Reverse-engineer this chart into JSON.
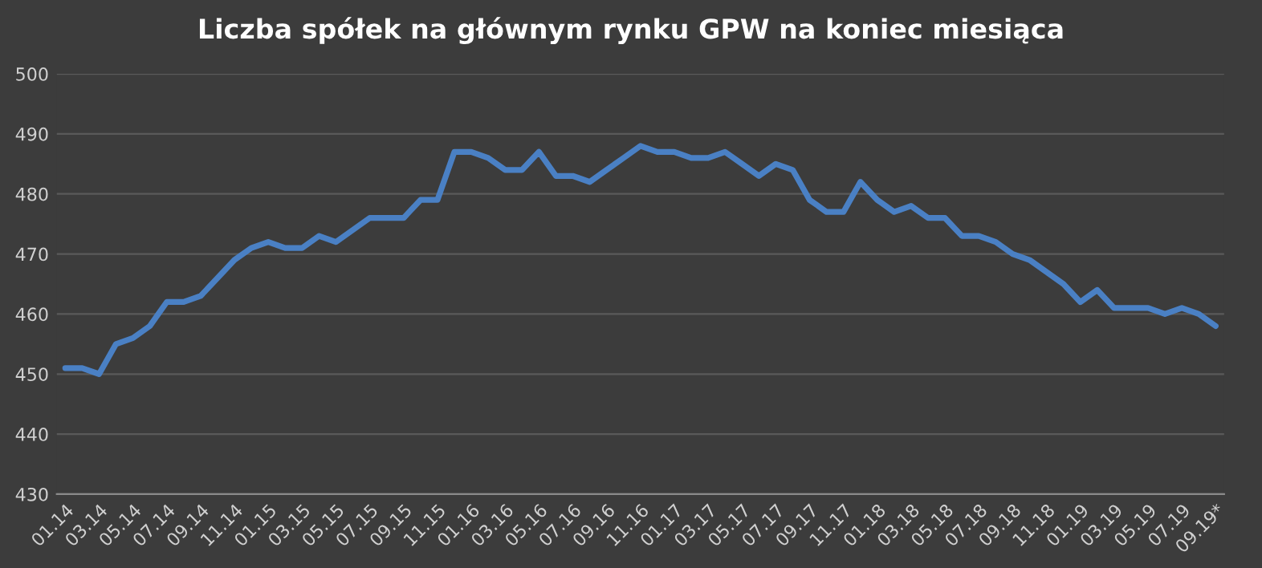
{
  "chart_data": {
    "type": "line",
    "title": "Liczba spółek na głównym rynku GPW na koniec miesiąca",
    "categories": [
      "01.14",
      null,
      "03.14",
      null,
      "05.14",
      null,
      "07.14",
      null,
      "09.14",
      null,
      "11.14",
      null,
      "01.15",
      null,
      "03.15",
      null,
      "05.15",
      null,
      "07.15",
      null,
      "09.15",
      null,
      "11.15",
      null,
      "01.16",
      null,
      "03.16",
      null,
      "05.16",
      null,
      "07.16",
      null,
      "09.16",
      null,
      "11.16",
      null,
      "01.17",
      null,
      "03.17",
      null,
      "05.17",
      null,
      "07.17",
      null,
      "09.17",
      null,
      "11.17",
      null,
      "01.18",
      null,
      "03.18",
      null,
      "05.18",
      null,
      "07.18",
      null,
      "09.18",
      null,
      "11.18",
      null,
      "01.19",
      null,
      "03.19",
      null,
      "05.19",
      null,
      "07.19",
      null,
      "09.19*"
    ],
    "series": [
      {
        "color": "#4a80c4",
        "values": [
          451,
          451,
          450,
          455,
          456,
          458,
          462,
          462,
          463,
          466,
          469,
          471,
          472,
          471,
          471,
          473,
          472,
          474,
          476,
          476,
          476,
          479,
          479,
          487,
          487,
          486,
          484,
          484,
          487,
          483,
          483,
          482,
          484,
          486,
          488,
          487,
          487,
          486,
          486,
          487,
          485,
          483,
          485,
          484,
          479,
          477,
          477,
          482,
          479,
          477,
          478,
          476,
          476,
          473,
          473,
          472,
          470,
          469,
          467,
          465,
          462,
          464,
          461,
          461,
          461,
          460,
          461,
          460,
          458
        ]
      }
    ],
    "ylim": [
      430,
      500
    ],
    "yticks": [
      430,
      440,
      450,
      460,
      470,
      480,
      490,
      500
    ],
    "grid": "y",
    "marker": "none",
    "line_style": "solid"
  }
}
